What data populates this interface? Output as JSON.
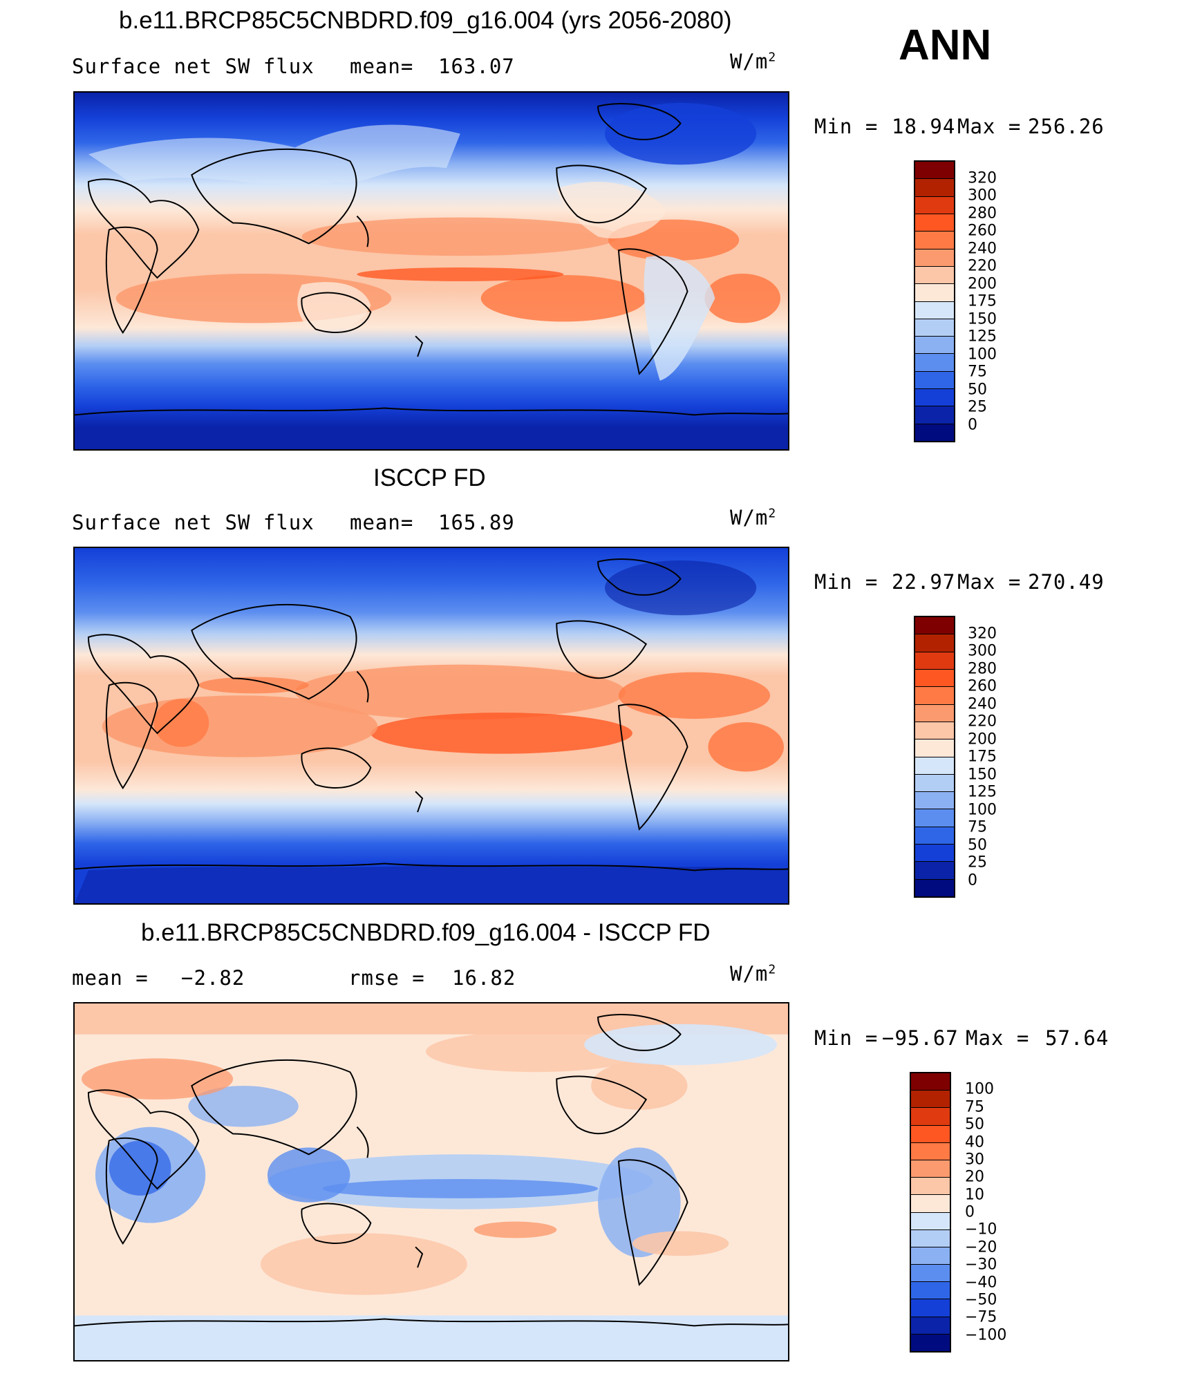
{
  "season": "ANN",
  "panels": [
    {
      "title": "b.e11.BRCP85C5CNBDRD.f09_g16.004 (yrs 2056-2080)",
      "left_label": "Surface net SW flux",
      "stat_label": "mean=",
      "stat_value": "163.07",
      "unit_base": "W/m",
      "unit_exp": "2",
      "min_label": "Min =",
      "min_value": "18.94",
      "max_label": "Max =",
      "max_value": "256.26",
      "levels": [
        "320",
        "300",
        "280",
        "260",
        "240",
        "220",
        "200",
        "175",
        "150",
        "125",
        "100",
        "75",
        "50",
        "25",
        "0"
      ]
    },
    {
      "title": "ISCCP FD",
      "left_label": "Surface net SW flux",
      "stat_label": "mean=",
      "stat_value": "165.89",
      "unit_base": "W/m",
      "unit_exp": "2",
      "min_label": "Min =",
      "min_value": "22.97",
      "max_label": "Max =",
      "max_value": "270.49",
      "levels": [
        "320",
        "300",
        "280",
        "260",
        "240",
        "220",
        "200",
        "175",
        "150",
        "125",
        "100",
        "75",
        "50",
        "25",
        "0"
      ]
    },
    {
      "title": "b.e11.BRCP85C5CNBDRD.f09_g16.004 - ISCCP FD",
      "left_label": "mean =",
      "left_value": "−2.82",
      "stat_label": "rmse =",
      "stat_value": "16.82",
      "unit_base": "W/m",
      "unit_exp": "2",
      "min_label": "Min =",
      "min_value": "−95.67",
      "max_label": "Max =",
      "max_value": "57.64",
      "levels": [
        "100",
        "75",
        "50",
        "40",
        "30",
        "20",
        "10",
        "0",
        "−10",
        "−20",
        "−30",
        "−40",
        "−50",
        "−75",
        "−100"
      ]
    }
  ],
  "colors": {
    "abs_scale": [
      "#7f0000",
      "#b22200",
      "#e03a10",
      "#ff5722",
      "#ff7a45",
      "#fb9a6e",
      "#fcc6a8",
      "#fde8d8",
      "#d5e6fa",
      "#b3cef5",
      "#8cb1f3",
      "#5c8ef0",
      "#2f66e8",
      "#1440d8",
      "#0a23a8",
      "#000b80"
    ],
    "diff_scale": [
      "#7f0000",
      "#b22200",
      "#e03a10",
      "#ff5722",
      "#ff7a45",
      "#fb9a6e",
      "#fcc6a8",
      "#fde8d8",
      "#d5e6fa",
      "#b3cef5",
      "#8cb1f3",
      "#5c8ef0",
      "#2f66e8",
      "#1440d8",
      "#0a23a8",
      "#000b80"
    ]
  }
}
